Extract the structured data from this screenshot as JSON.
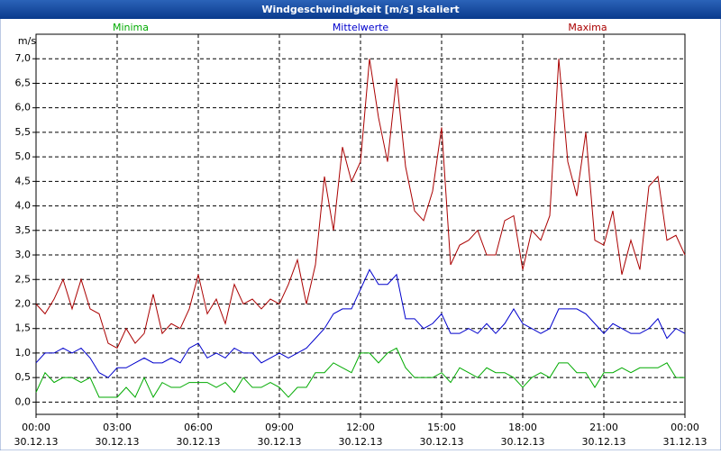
{
  "window_title": "Windgeschwindigkeit [m/s] skaliert",
  "chart_data": {
    "type": "line",
    "y_unit": "m/s",
    "x": [
      0,
      20,
      40,
      60,
      80,
      100,
      120,
      140,
      160,
      180,
      200,
      220,
      240,
      260,
      280,
      300,
      320,
      340,
      360,
      380,
      400,
      420,
      440,
      460,
      480,
      500,
      520,
      540,
      560,
      580,
      600,
      620,
      640,
      660,
      680,
      700,
      720,
      740,
      760,
      780,
      800,
      820,
      840,
      860,
      880,
      900,
      920,
      940,
      960,
      980,
      1000,
      1020,
      1040,
      1060,
      1080,
      1100,
      1120,
      1140,
      1160,
      1180,
      1200,
      1220,
      1240,
      1260,
      1280,
      1300,
      1320,
      1340,
      1360,
      1380,
      1400,
      1420,
      1440
    ],
    "xlim": [
      0,
      1440
    ],
    "xticks": [
      {
        "value": 0,
        "label": "00:00"
      },
      {
        "value": 180,
        "label": "03:00"
      },
      {
        "value": 360,
        "label": "06:00"
      },
      {
        "value": 540,
        "label": "09:00"
      },
      {
        "value": 720,
        "label": "12:00"
      },
      {
        "value": 900,
        "label": "15:00"
      },
      {
        "value": 1080,
        "label": "18:00"
      },
      {
        "value": 1260,
        "label": "21:00"
      },
      {
        "value": 1440,
        "label": "00:00"
      }
    ],
    "xtick_dates": [
      "30.12.13",
      "30.12.13",
      "30.12.13",
      "30.12.13",
      "30.12.13",
      "30.12.13",
      "30.12.13",
      "30.12.13",
      "31.12.13"
    ],
    "ylim": [
      -0.25,
      7.5
    ],
    "yticks": [
      {
        "value": 0,
        "label": "0,0"
      },
      {
        "value": 0.5,
        "label": "0,5"
      },
      {
        "value": 1,
        "label": "1,0"
      },
      {
        "value": 1.5,
        "label": "1,5"
      },
      {
        "value": 2,
        "label": "2,0"
      },
      {
        "value": 2.5,
        "label": "2,5"
      },
      {
        "value": 3,
        "label": "3,0"
      },
      {
        "value": 3.5,
        "label": "3,5"
      },
      {
        "value": 4,
        "label": "4,0"
      },
      {
        "value": 4.5,
        "label": "4,5"
      },
      {
        "value": 5,
        "label": "5,0"
      },
      {
        "value": 5.5,
        "label": "5,5"
      },
      {
        "value": 6,
        "label": "6,0"
      },
      {
        "value": 6.5,
        "label": "6,5"
      },
      {
        "value": 7,
        "label": "7,0"
      }
    ],
    "grid": true,
    "series": [
      {
        "name": "Minima",
        "color": "#00aa00",
        "values": [
          0.2,
          0.6,
          0.4,
          0.5,
          0.5,
          0.4,
          0.5,
          0.1,
          0.1,
          0.1,
          0.3,
          0.1,
          0.5,
          0.1,
          0.4,
          0.3,
          0.3,
          0.4,
          0.4,
          0.4,
          0.3,
          0.4,
          0.2,
          0.5,
          0.3,
          0.3,
          0.4,
          0.3,
          0.1,
          0.3,
          0.3,
          0.6,
          0.6,
          0.8,
          0.7,
          0.6,
          1.0,
          1.0,
          0.8,
          1.0,
          1.1,
          0.7,
          0.5,
          0.5,
          0.5,
          0.6,
          0.4,
          0.7,
          0.6,
          0.5,
          0.7,
          0.6,
          0.6,
          0.5,
          0.3,
          0.5,
          0.6,
          0.5,
          0.8,
          0.8,
          0.6,
          0.6,
          0.3,
          0.6,
          0.6,
          0.7,
          0.6,
          0.7,
          0.7,
          0.7,
          0.8,
          0.5,
          0.5
        ]
      },
      {
        "name": "Mittelwerte",
        "color": "#0000cc",
        "values": [
          0.8,
          1.0,
          1.0,
          1.1,
          1.0,
          1.1,
          0.9,
          0.6,
          0.5,
          0.7,
          0.7,
          0.8,
          0.9,
          0.8,
          0.8,
          0.9,
          0.8,
          1.1,
          1.2,
          0.9,
          1.0,
          0.9,
          1.1,
          1.0,
          1.0,
          0.8,
          0.9,
          1.0,
          0.9,
          1.0,
          1.1,
          1.3,
          1.5,
          1.8,
          1.9,
          1.9,
          2.3,
          2.7,
          2.4,
          2.4,
          2.6,
          1.7,
          1.7,
          1.5,
          1.6,
          1.8,
          1.4,
          1.4,
          1.5,
          1.4,
          1.6,
          1.4,
          1.6,
          1.9,
          1.6,
          1.5,
          1.4,
          1.5,
          1.9,
          1.9,
          1.9,
          1.8,
          1.6,
          1.4,
          1.6,
          1.5,
          1.4,
          1.4,
          1.5,
          1.7,
          1.3,
          1.5,
          1.4
        ]
      },
      {
        "name": "Maxima",
        "color": "#aa0000",
        "values": [
          2.0,
          1.8,
          2.1,
          2.5,
          1.9,
          2.5,
          1.9,
          1.8,
          1.2,
          1.1,
          1.5,
          1.2,
          1.4,
          2.2,
          1.4,
          1.6,
          1.5,
          1.9,
          2.6,
          1.8,
          2.1,
          1.6,
          2.4,
          2.0,
          2.1,
          1.9,
          2.1,
          2.0,
          2.4,
          2.9,
          2.0,
          2.8,
          4.6,
          3.5,
          5.2,
          4.5,
          4.9,
          7.0,
          5.8,
          4.9,
          6.6,
          4.8,
          3.9,
          3.7,
          4.3,
          5.6,
          2.8,
          3.2,
          3.3,
          3.5,
          3.0,
          3.0,
          3.7,
          3.8,
          2.7,
          3.5,
          3.3,
          3.8,
          7.0,
          4.9,
          4.2,
          5.5,
          3.3,
          3.2,
          3.9,
          2.6,
          3.3,
          2.7,
          4.4,
          4.6,
          3.3,
          3.4,
          3.0
        ]
      }
    ]
  }
}
